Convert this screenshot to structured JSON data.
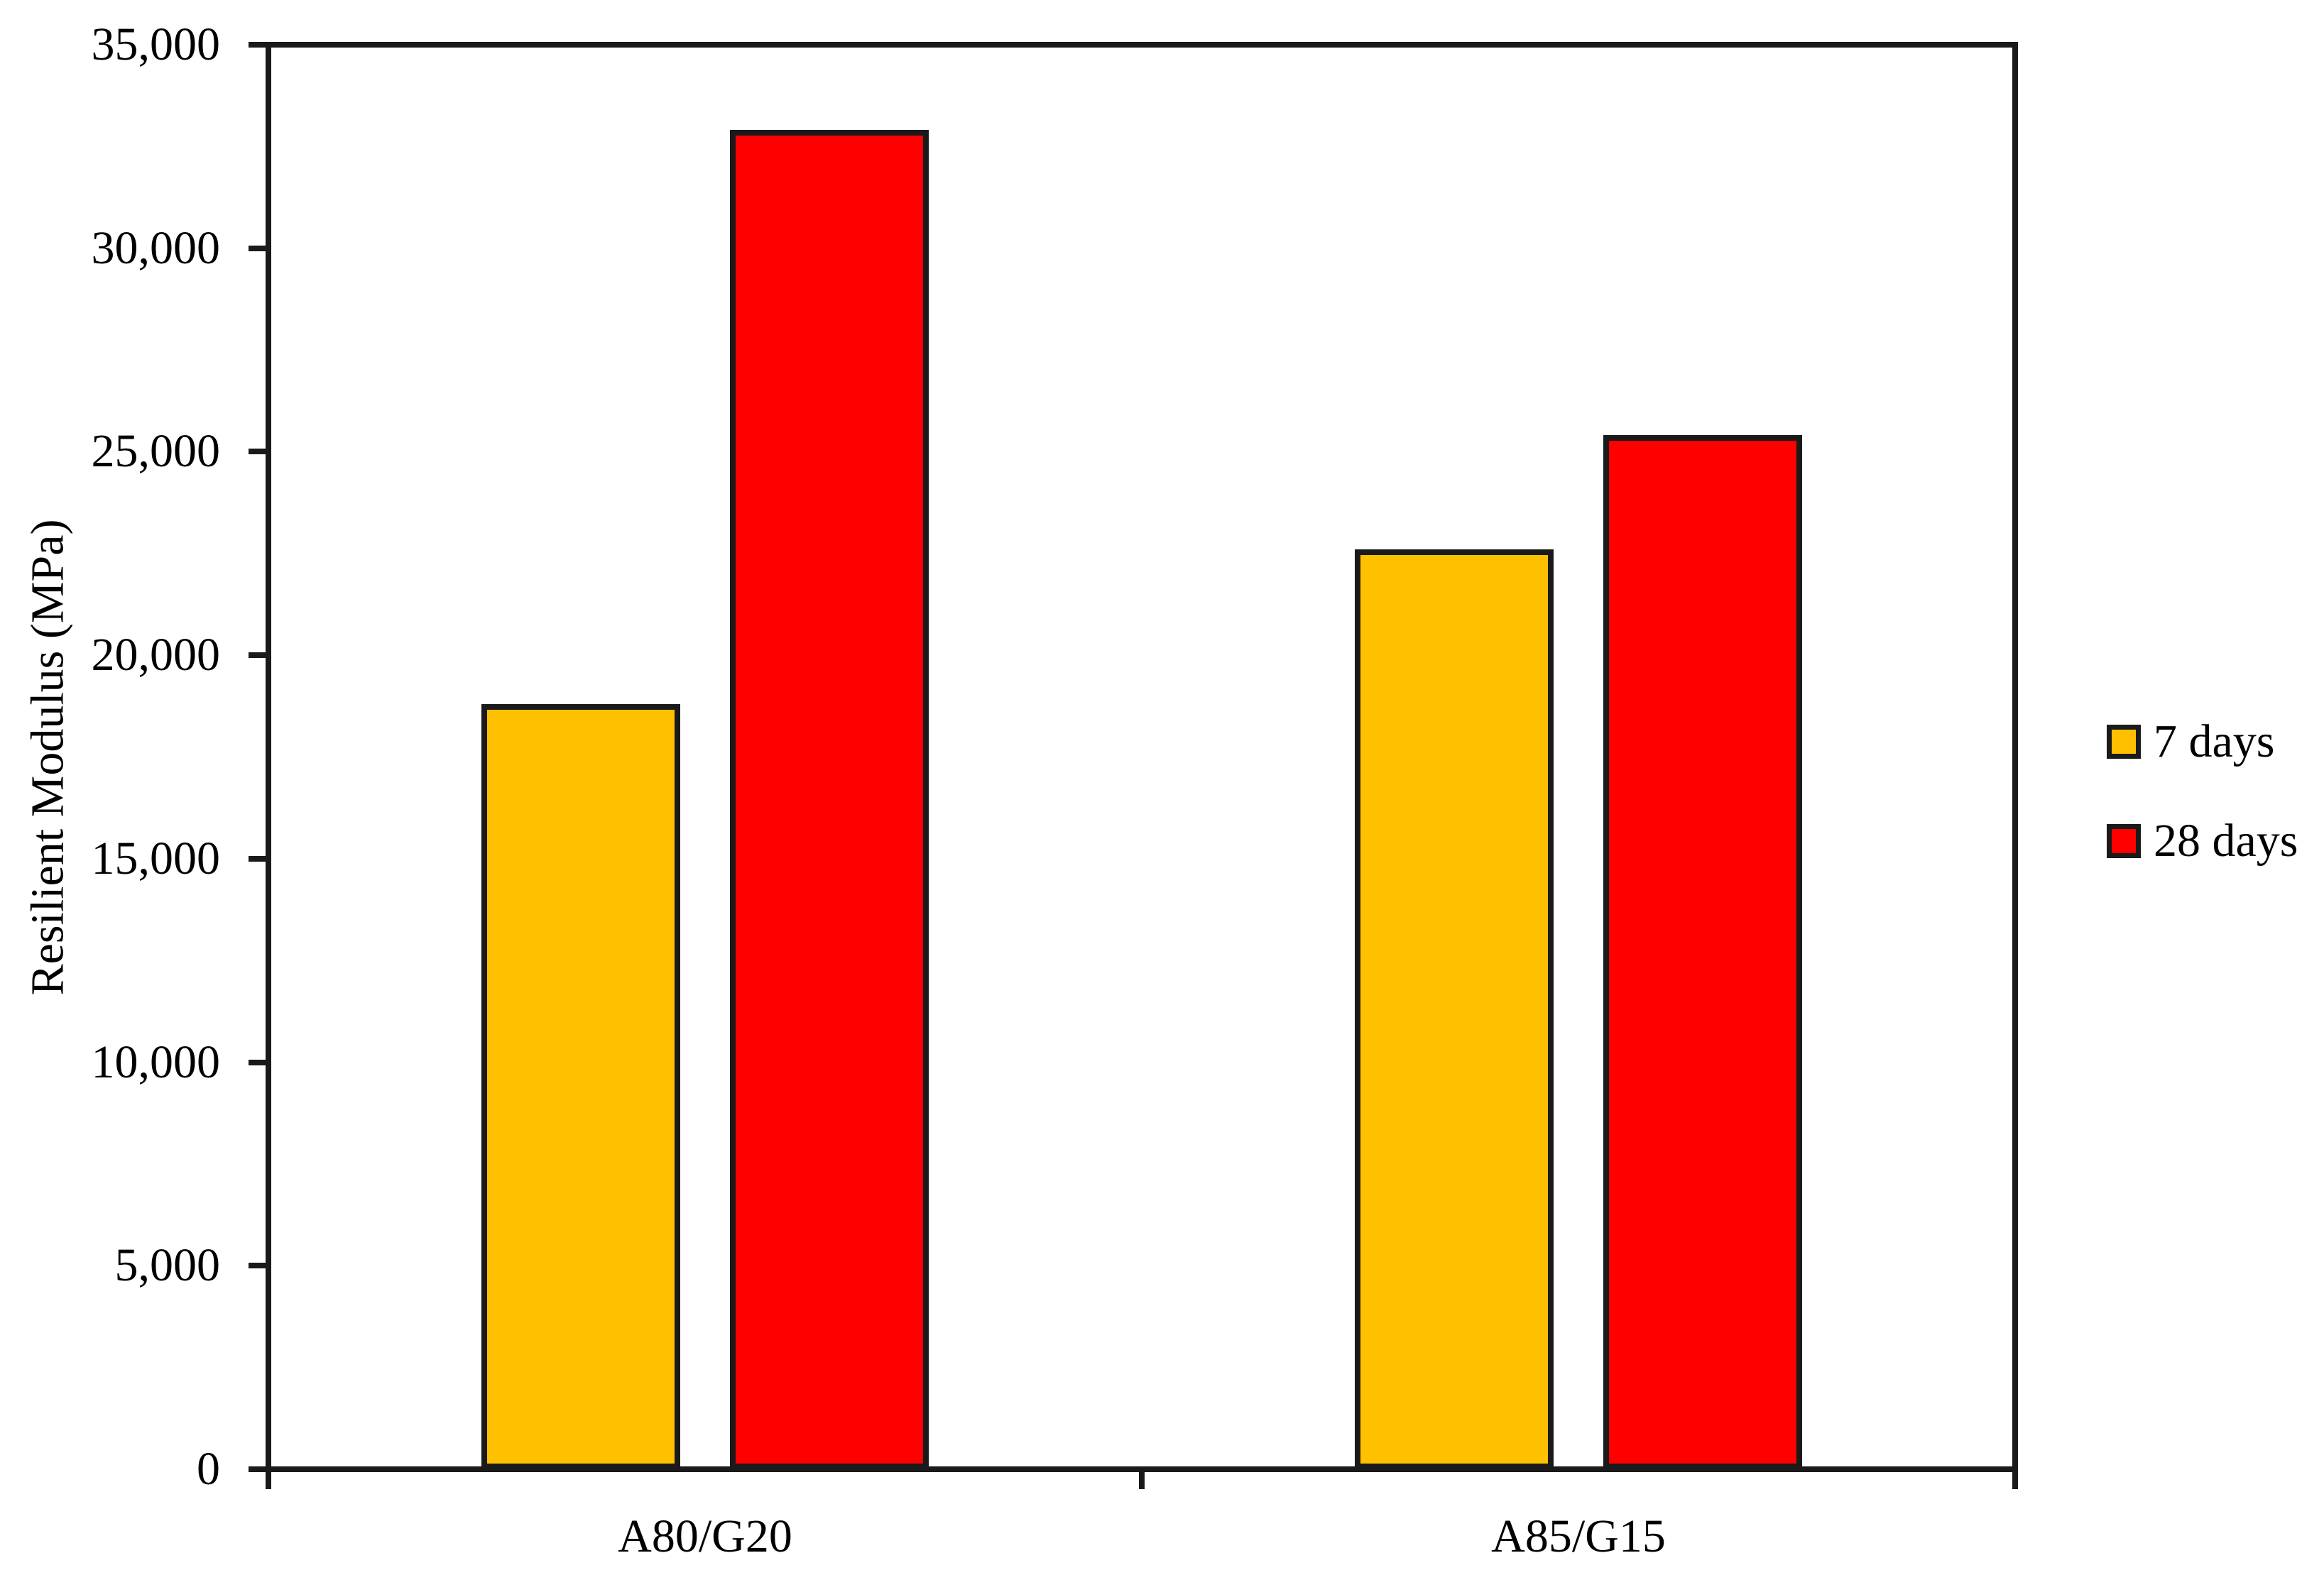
{
  "chart_data": {
    "type": "bar",
    "title": "",
    "categories": [
      "A80/G20",
      "A85/G15"
    ],
    "series": [
      {
        "name": "7 days",
        "color": "#FFC000",
        "values": [
          18800,
          22600
        ]
      },
      {
        "name": "28 days",
        "color": "#FF0000",
        "values": [
          32900,
          25400
        ]
      }
    ],
    "xlabel": "",
    "ylabel": "Resilient Modulus (MPa)",
    "ylim": [
      0,
      35000
    ],
    "ytick_step": 5000,
    "ytick_labels": [
      "0",
      "5,000",
      "10,000",
      "15,000",
      "20,000",
      "25,000",
      "30,000",
      "35,000"
    ],
    "grid": false,
    "legend_position": "right",
    "bar_outline_color": "#1a1a1a",
    "axis_color": "#1a1a1a",
    "text_color": "#000000",
    "background": "#ffffff"
  }
}
